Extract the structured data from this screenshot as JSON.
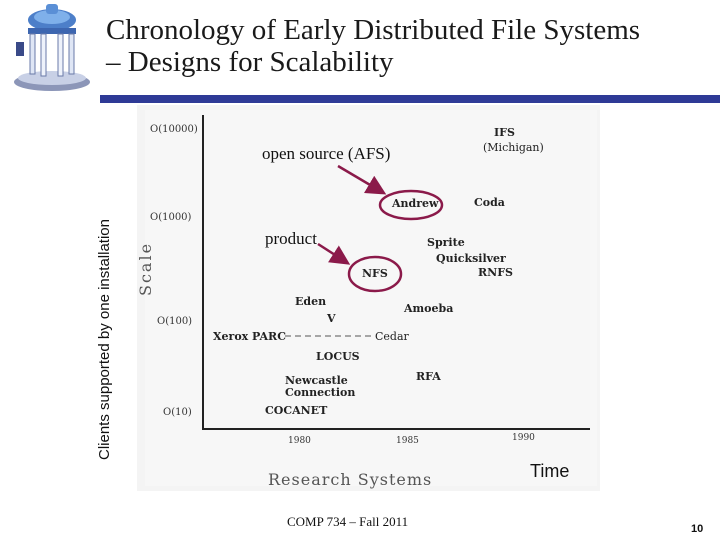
{
  "title_line1": "Chronology of Early Distributed File Systems",
  "title_line2": "– Designs for Scalability",
  "y_axis_label": "Clients supported by one installation",
  "x_axis_label": "Time",
  "figure": {
    "scale_label": "Scale",
    "research_label": "Research Systems",
    "y_ticks": [
      "O(10000)",
      "O(1000)",
      "O(100)",
      "O(10)"
    ],
    "x_ticks": [
      "1980",
      "1985",
      "1990"
    ],
    "systems": {
      "ifs": "IFS",
      "ifs_sub": "(Michigan)",
      "andrew": "Andrew",
      "coda": "Coda",
      "sprite": "Sprite",
      "quicksilver": "Quicksilver",
      "rnfs": "RNFS",
      "nfs": "NFS",
      "eden": "Eden",
      "amoeba": "Amoeba",
      "v": "V",
      "xerox": "Xerox PARC",
      "cedar": "Cedar",
      "locus": "LOCUS",
      "newcastle1": "Newcastle",
      "newcastle2": "Connection",
      "rfa": "RFA",
      "cocanet": "COCANET"
    },
    "annotations": {
      "open_source": "open source (AFS)",
      "product": "product"
    },
    "highlight_color": "#8b1a4a"
  },
  "footer": "COMP 734 – Fall 2011",
  "page_number": "10"
}
